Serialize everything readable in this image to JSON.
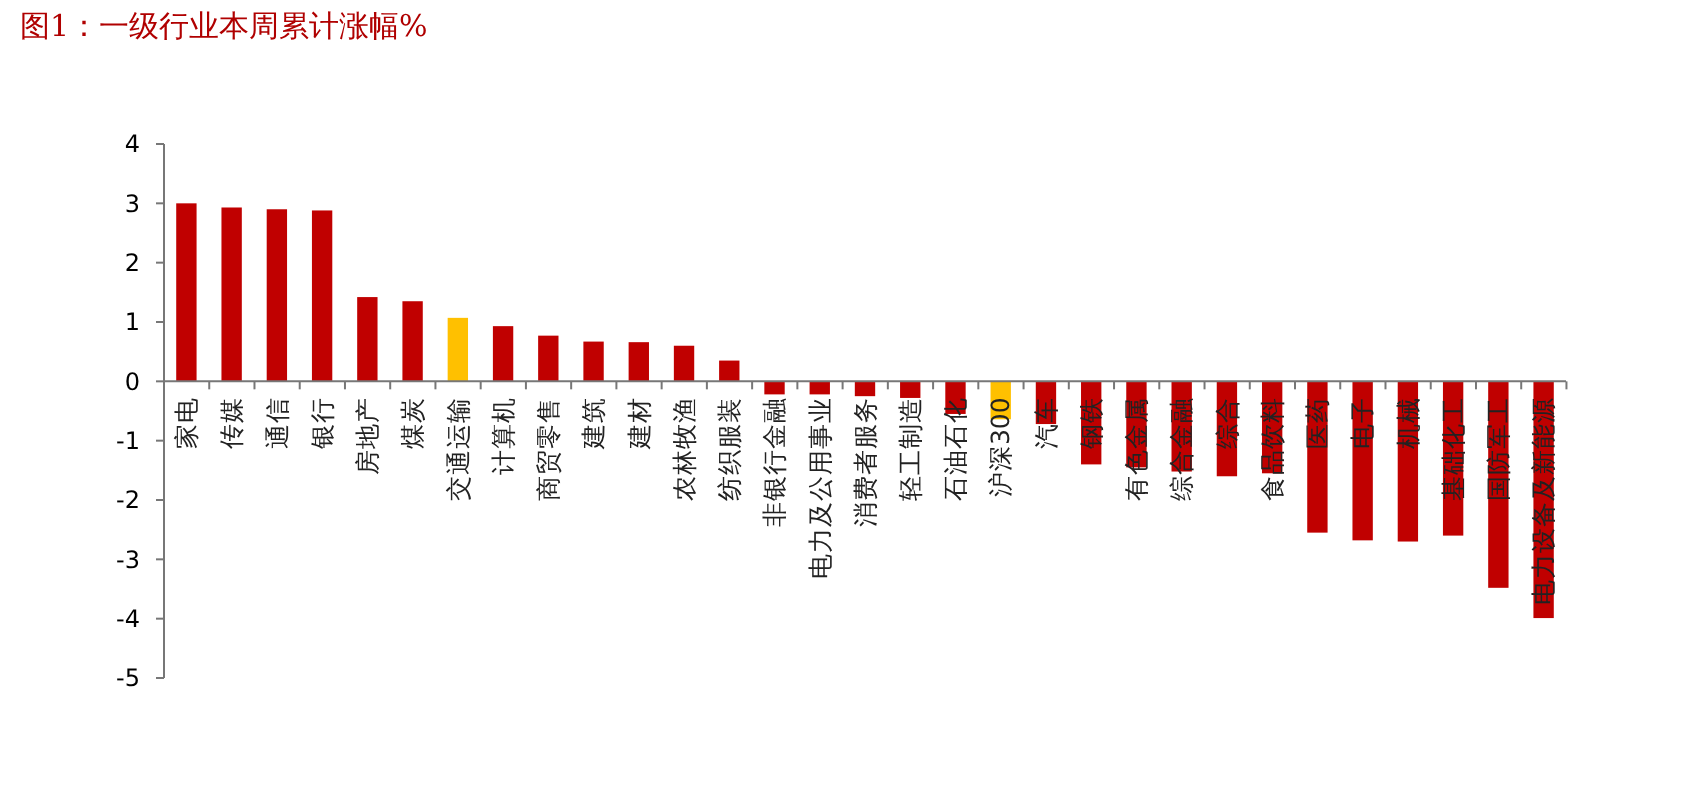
{
  "chart_data": {
    "type": "bar",
    "title": "图1：一级行业本周累计涨幅%",
    "categories": [
      "家电",
      "传媒",
      "通信",
      "银行",
      "房地产",
      "煤炭",
      "交通运输",
      "计算机",
      "商贸零售",
      "建筑",
      "建材",
      "农林牧渔",
      "纺织服装",
      "非银行金融",
      "电力及公用事业",
      "消费者服务",
      "轻工制造",
      "石油石化",
      "沪深300",
      "汽车",
      "钢铁",
      "有色金属",
      "综合金融",
      "综合",
      "食品饮料",
      "医药",
      "电子",
      "机械",
      "基础化工",
      "国防军工",
      "电力设备及新能源"
    ],
    "values": [
      3.0,
      2.93,
      2.9,
      2.88,
      1.42,
      1.35,
      1.07,
      0.93,
      0.77,
      0.67,
      0.66,
      0.6,
      0.35,
      -0.22,
      -0.22,
      -0.25,
      -0.28,
      -0.55,
      -0.64,
      -0.72,
      -1.4,
      -1.45,
      -1.52,
      -1.6,
      -1.55,
      -2.55,
      -2.68,
      -2.7,
      -2.6,
      -3.48,
      -3.99
    ],
    "colors": [
      "#c00000",
      "#c00000",
      "#c00000",
      "#c00000",
      "#c00000",
      "#c00000",
      "#ffc000",
      "#c00000",
      "#c00000",
      "#c00000",
      "#c00000",
      "#c00000",
      "#c00000",
      "#c00000",
      "#c00000",
      "#c00000",
      "#c00000",
      "#c00000",
      "#ffc000",
      "#c00000",
      "#c00000",
      "#c00000",
      "#c00000",
      "#c00000",
      "#c00000",
      "#c00000",
      "#c00000",
      "#c00000",
      "#c00000",
      "#c00000",
      "#c00000"
    ],
    "ylim": [
      -5,
      4
    ],
    "yticks": [
      -5,
      -4,
      -3,
      -2,
      -1,
      0,
      1,
      2,
      3,
      4
    ],
    "grid": false
  }
}
